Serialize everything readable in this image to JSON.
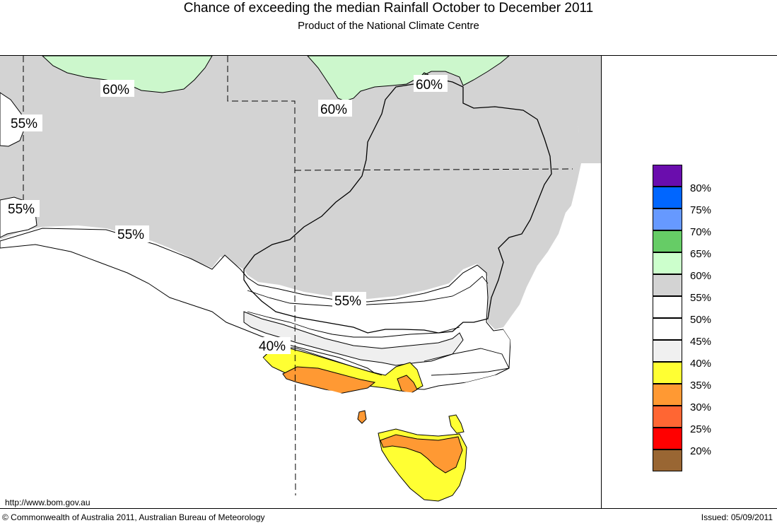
{
  "header": {
    "title": "Chance of exceeding the median Rainfall October to December 2011",
    "subtitle": "Product of the National Climate Centre"
  },
  "map": {
    "contour_labels": [
      {
        "text": "60%",
        "id": "label-60-north-west"
      },
      {
        "text": "60%",
        "id": "label-60-north-central"
      },
      {
        "text": "60%",
        "id": "label-60-north-east"
      },
      {
        "text": "55%",
        "id": "label-55-west-top"
      },
      {
        "text": "55%",
        "id": "label-55-west-bottom"
      },
      {
        "text": "55%",
        "id": "label-55-coast"
      },
      {
        "text": "55%",
        "id": "label-55-inland"
      },
      {
        "text": "40%",
        "id": "label-40-south"
      }
    ],
    "colors": {
      "land_grey": "#d3d3d3",
      "light_green": "#ccf7cc",
      "white": "#ffffff",
      "very_light_grey": "#efefef",
      "yellow": "#ffff33",
      "orange": "#ff9933"
    }
  },
  "legend": {
    "items": [
      {
        "label": "80%",
        "color": "#6a0dad"
      },
      {
        "label": "75%",
        "color": "#0066ff"
      },
      {
        "label": "70%",
        "color": "#6699ff"
      },
      {
        "label": "65%",
        "color": "#66cc66"
      },
      {
        "label": "60%",
        "color": "#ccffcc"
      },
      {
        "label": "55%",
        "color": "#d3d3d3"
      },
      {
        "label": "50%",
        "color": "#ffffff"
      },
      {
        "label": "45%",
        "color": "#ffffff"
      },
      {
        "label": "40%",
        "color": "#f0f0f0"
      },
      {
        "label": "35%",
        "color": "#ffff33"
      },
      {
        "label": "30%",
        "color": "#ff9933"
      },
      {
        "label": "25%",
        "color": "#ff6633"
      },
      {
        "label": "20%",
        "color": "#ff0000"
      },
      {
        "label": "",
        "color": "#996633"
      }
    ]
  },
  "footer": {
    "url": "http://www.bom.gov.au",
    "copyright": "© Commonwealth of Australia 2011, Australian Bureau of Meteorology",
    "issued": "Issued: 05/09/2011"
  }
}
